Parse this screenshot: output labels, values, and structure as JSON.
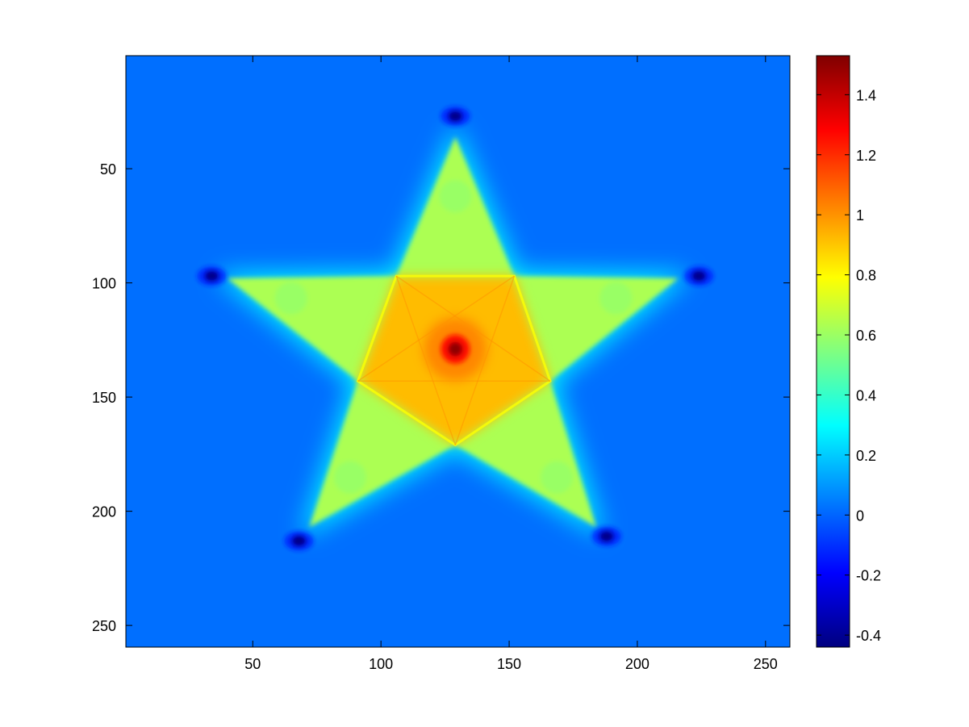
{
  "chart_data": {
    "type": "heatmap",
    "title": "",
    "xlabel": "",
    "ylabel": "",
    "x_range": [
      1,
      259
    ],
    "y_range": [
      1,
      259
    ],
    "y_axis_direction": "top-to-bottom",
    "x_ticks": [
      50,
      100,
      150,
      200,
      250
    ],
    "y_ticks": [
      50,
      100,
      150,
      200,
      250
    ],
    "colorbar": {
      "colormap": "jet",
      "placement": "right",
      "range": [
        -0.44,
        1.53
      ],
      "ticks": [
        -0.4,
        -0.2,
        0,
        0.2,
        0.4,
        0.6,
        0.8,
        1,
        1.2,
        1.4
      ],
      "tick_labels": [
        "-0.4",
        "-0.2",
        "0",
        "0.2",
        "0.4",
        "0.6",
        "0.8",
        "1",
        "1.2",
        "1.4"
      ]
    },
    "grid": false,
    "image_content": {
      "description_of_values": "five-pointed star; background ~0.02, star interior ~0.7-1.0, center maximum ~1.5, dark minima (~-0.4) just outside each of the 5 tips",
      "background_value": 0.02,
      "star_center": [
        129,
        129
      ],
      "center_peak_value": 1.5,
      "star_tips": [
        [
          129,
          36
        ],
        [
          216,
          98
        ],
        [
          184,
          207
        ],
        [
          72,
          207
        ],
        [
          40,
          98
        ]
      ],
      "star_inner_vertices": [
        [
          152,
          97
        ],
        [
          166,
          143
        ],
        [
          129,
          171
        ],
        [
          91,
          143
        ],
        [
          106,
          97
        ]
      ],
      "star_fill_outer_value": 0.68,
      "star_fill_inner_value": 0.92,
      "minima": [
        [
          129,
          27
        ],
        [
          34,
          97
        ],
        [
          224,
          97
        ],
        [
          68,
          213
        ],
        [
          188,
          211
        ]
      ],
      "minimum_value": -0.42
    }
  }
}
